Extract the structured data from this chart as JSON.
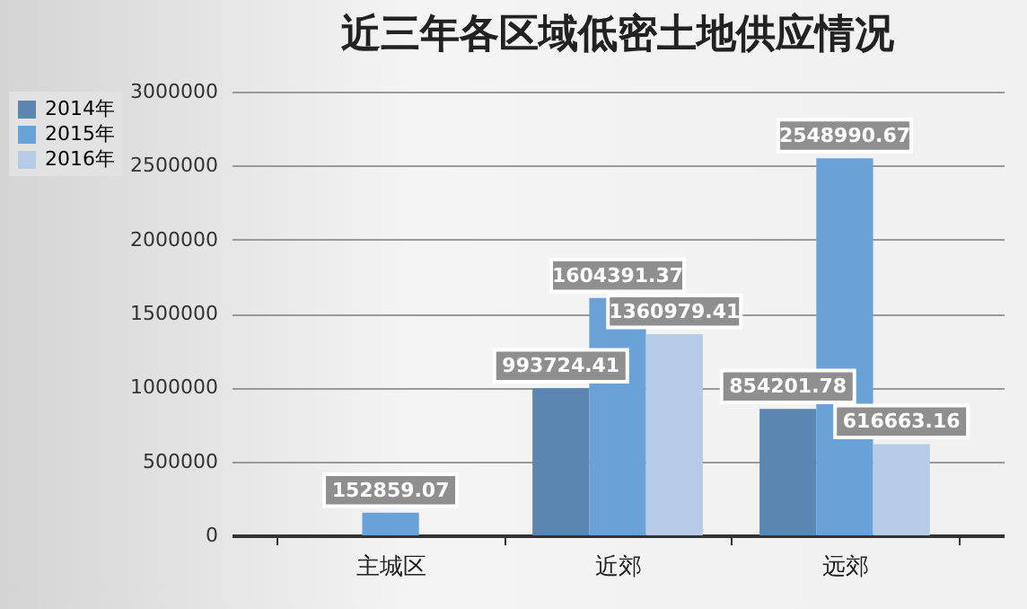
{
  "chart_data": {
    "type": "bar",
    "title": "近三年各区域低密土地供应情况",
    "categories": [
      "主城区",
      "近郊",
      "远郊"
    ],
    "series": [
      {
        "name": "2014年",
        "color": "#5b86b2",
        "values": [
          null,
          993724.41,
          854201.78
        ],
        "value_labels": [
          null,
          "993724.41",
          "854201.78"
        ]
      },
      {
        "name": "2015年",
        "color": "#6aa2d8",
        "values": [
          152859.07,
          1604391.37,
          2548990.67
        ],
        "value_labels": [
          "152859.07",
          "1604391.37",
          "2548990.67"
        ]
      },
      {
        "name": "2016年",
        "color": "#b6cce6",
        "values": [
          null,
          1360979.41,
          616663.16
        ],
        "value_labels": [
          null,
          "1360979.41",
          "616663.16"
        ]
      }
    ],
    "ylim": [
      0,
      3000000
    ],
    "yticks": [
      0,
      500000,
      1000000,
      1500000,
      2000000,
      2500000,
      3000000
    ],
    "grid": "y",
    "legend": "left"
  }
}
